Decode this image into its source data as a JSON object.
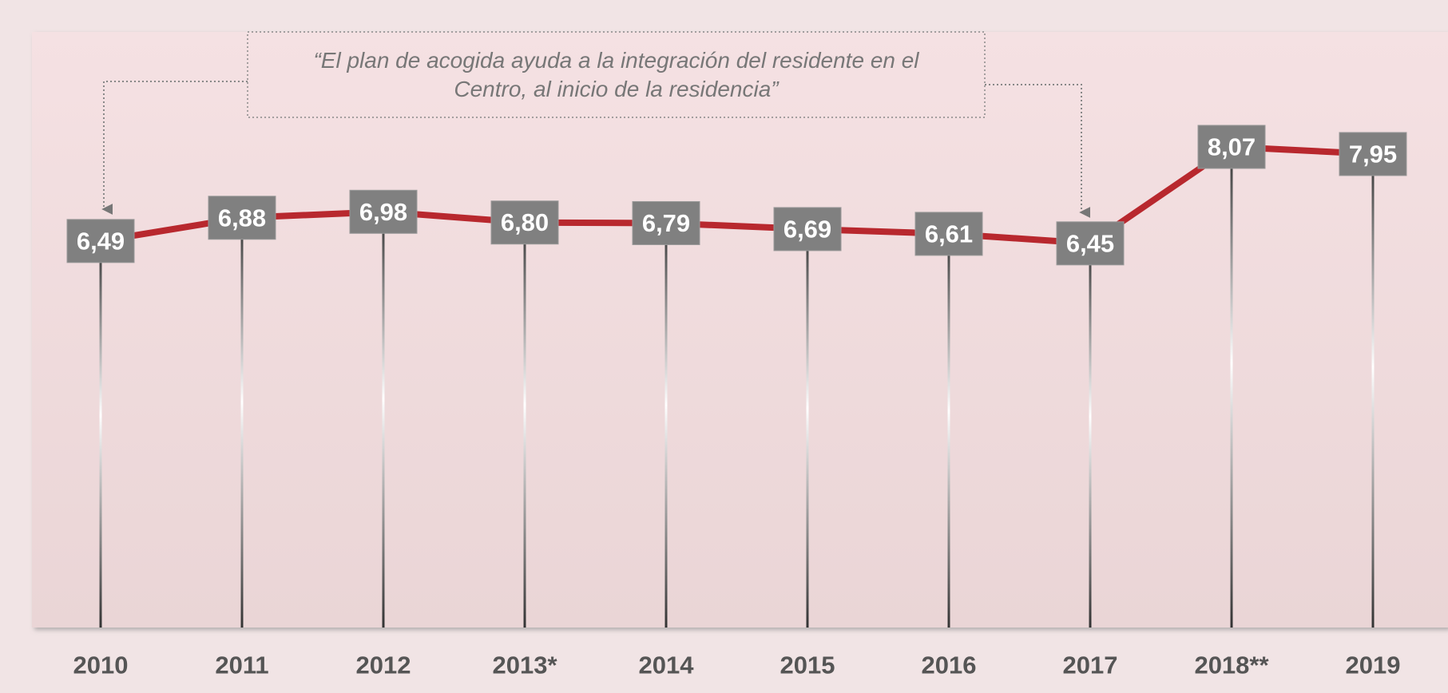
{
  "chart_data": {
    "type": "line",
    "annotation": "“El plan de acogida ayuda a la integración del residente en el Centro, al inicio de la residencia”",
    "categories": [
      "2010",
      "2011",
      "2012",
      "2013*",
      "2014",
      "2015",
      "2016",
      "2017",
      "2018**",
      "2019"
    ],
    "values": [
      6.49,
      6.88,
      6.98,
      6.8,
      6.79,
      6.69,
      6.61,
      6.45,
      8.07,
      7.95
    ],
    "value_labels": [
      "6,49",
      "6,88",
      "6,98",
      "6,80",
      "6,79",
      "6,69",
      "6,61",
      "6,45",
      "8,07",
      "7,95"
    ],
    "color": "#b8282e",
    "label_box_color": "#808080",
    "ylim": [
      0,
      10
    ]
  }
}
